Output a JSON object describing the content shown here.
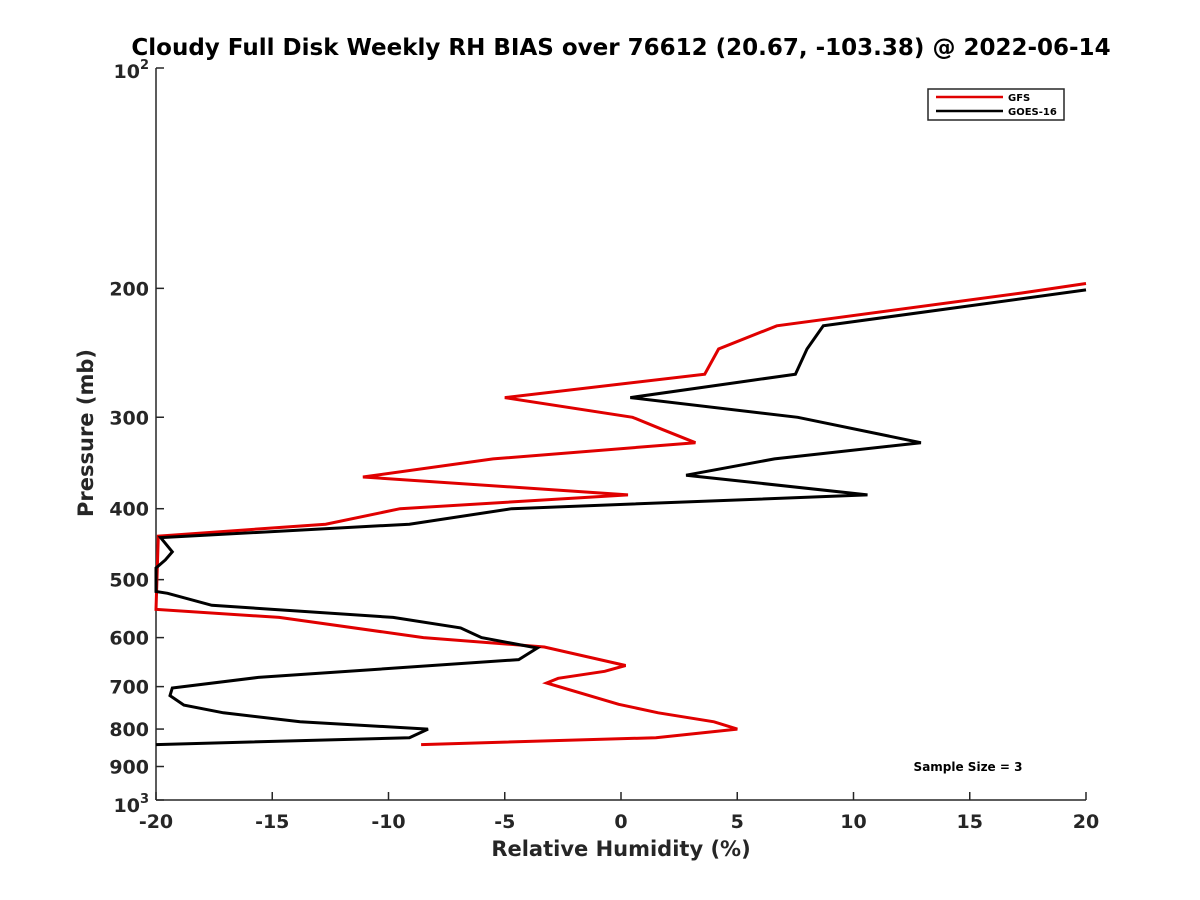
{
  "chart_data": {
    "type": "line",
    "title": "Cloudy Full Disk Weekly RH BIAS over 76612 (20.67, -103.38) @ 2022-06-14",
    "xlabel": "Relative Humidity (%)",
    "ylabel": "Pressure (mb)",
    "xlim": [
      -20,
      20
    ],
    "ylim": [
      100,
      1000
    ],
    "yscale": "log",
    "y_reversed": true,
    "grid": false,
    "legend_position": "top-right",
    "x_ticks": [
      -20,
      -15,
      -10,
      -5,
      0,
      5,
      10,
      15,
      20
    ],
    "x_tick_labels": [
      "-20",
      "-15",
      "-10",
      "-5",
      "0",
      "5",
      "10",
      "15",
      "20"
    ],
    "y_ticks": [
      200,
      300,
      400,
      500,
      600,
      700,
      800,
      900
    ],
    "y_tick_labels": [
      "200",
      "300",
      "400",
      "500",
      "600",
      "700",
      "800",
      "900"
    ],
    "y_end_labels": {
      "top_base": "10",
      "top_exp": "2",
      "bottom_base": "10",
      "bottom_exp": "3"
    },
    "annotation": "Sample Size = 3",
    "series": [
      {
        "name": "GFS",
        "color": "#e00000",
        "points": [
          [
            20.0,
            197
          ],
          [
            17.2,
            203
          ],
          [
            6.7,
            225
          ],
          [
            4.2,
            242
          ],
          [
            3.6,
            262
          ],
          [
            -5.0,
            282
          ],
          [
            0.5,
            300
          ],
          [
            1.8,
            312
          ],
          [
            3.2,
            325
          ],
          [
            -5.5,
            342
          ],
          [
            -11.1,
            362
          ],
          [
            0.3,
            383
          ],
          [
            -9.5,
            400
          ],
          [
            -12.7,
            420
          ],
          [
            -19.9,
            436
          ],
          [
            -20.0,
            549
          ],
          [
            -14.7,
            563
          ],
          [
            -8.5,
            600
          ],
          [
            -3.3,
            618
          ],
          [
            0.2,
            655
          ],
          [
            -0.7,
            667
          ],
          [
            -2.7,
            682
          ],
          [
            -3.2,
            692
          ],
          [
            -0.1,
            740
          ],
          [
            1.6,
            760
          ],
          [
            4.0,
            782
          ],
          [
            5.0,
            800
          ],
          [
            1.5,
            822
          ],
          [
            -8.6,
            840
          ]
        ]
      },
      {
        "name": "GOES-16",
        "color": "#000000",
        "points": [
          [
            20.0,
            201
          ],
          [
            8.7,
            225
          ],
          [
            8.0,
            242
          ],
          [
            7.5,
            262
          ],
          [
            0.4,
            282
          ],
          [
            7.6,
            300
          ],
          [
            12.9,
            325
          ],
          [
            6.6,
            342
          ],
          [
            2.8,
            360
          ],
          [
            10.6,
            383
          ],
          [
            -4.7,
            400
          ],
          [
            -9.1,
            420
          ],
          [
            -19.8,
            438
          ],
          [
            -19.3,
            458
          ],
          [
            -19.6,
            470
          ],
          [
            -20.0,
            482
          ],
          [
            -20.0,
            519
          ],
          [
            -19.5,
            522
          ],
          [
            -17.6,
            542
          ],
          [
            -9.8,
            563
          ],
          [
            -6.9,
            582
          ],
          [
            -6.0,
            600
          ],
          [
            -3.6,
            620
          ],
          [
            -4.4,
            643
          ],
          [
            -15.6,
            680
          ],
          [
            -19.3,
            703
          ],
          [
            -19.4,
            720
          ],
          [
            -18.8,
            742
          ],
          [
            -17.1,
            760
          ],
          [
            -13.8,
            782
          ],
          [
            -8.3,
            800
          ],
          [
            -9.1,
            822
          ],
          [
            -20.0,
            840
          ]
        ]
      }
    ]
  }
}
